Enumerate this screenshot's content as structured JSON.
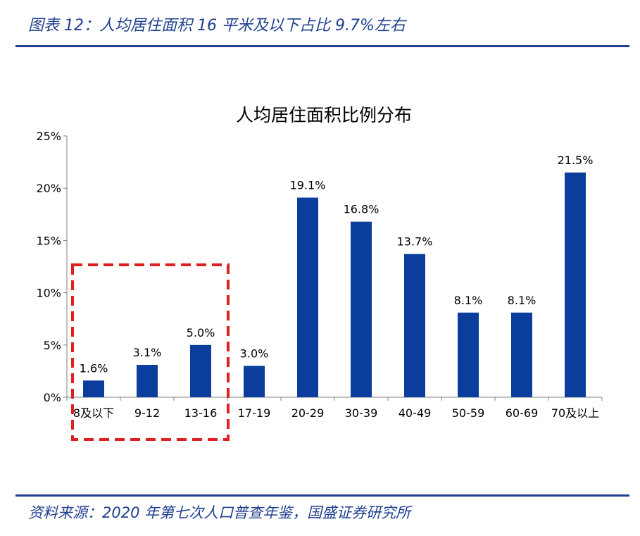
{
  "header": {
    "title": "图表 12：人均居住面积 16 平米及以下占比 9.7%左右"
  },
  "footer": {
    "source": "资料来源：2020 年第七次人口普查年鉴，国盛证券研究所"
  },
  "colors": {
    "accent": "#1f3f8f",
    "bar": "#0a3d9c",
    "highlight_box": "#e02020"
  },
  "chart_data": {
    "type": "bar",
    "title": "人均居住面积比例分布",
    "xlabel": "",
    "ylabel": "",
    "categories": [
      "8及以下",
      "9-12",
      "13-16",
      "17-19",
      "20-29",
      "30-39",
      "40-49",
      "50-59",
      "60-69",
      "70及以上"
    ],
    "values": [
      1.6,
      3.1,
      5.0,
      3.0,
      19.1,
      16.8,
      13.7,
      8.1,
      8.1,
      21.5
    ],
    "data_labels": [
      "1.6%",
      "3.1%",
      "5.0%",
      "3.0%",
      "19.1%",
      "16.8%",
      "13.7%",
      "8.1%",
      "8.1%",
      "21.5%"
    ],
    "y_ticks": [
      "0%",
      "5%",
      "10%",
      "15%",
      "20%",
      "25%"
    ],
    "y_tick_values": [
      0,
      5,
      10,
      15,
      20,
      25
    ],
    "ylim": [
      0,
      25
    ],
    "grid": false,
    "legend": "none",
    "highlighted_categories": [
      "8及以下",
      "9-12",
      "13-16"
    ]
  }
}
